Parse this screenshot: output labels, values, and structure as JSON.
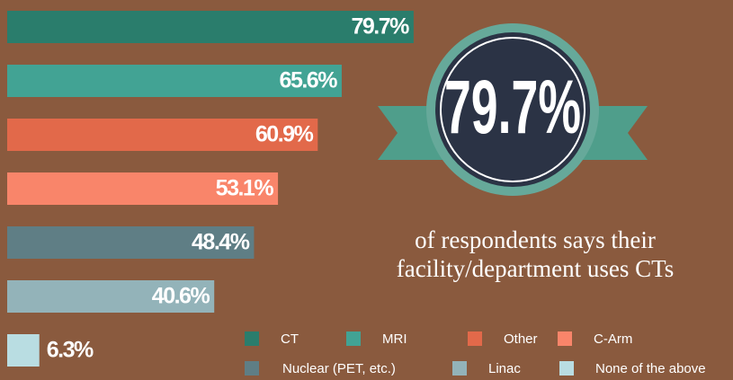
{
  "chart_data": {
    "type": "bar",
    "orientation": "horizontal",
    "categories": [
      "CT",
      "MRI",
      "Other",
      "C-Arm",
      "Nuclear (PET, etc.)",
      "Linac",
      "None of the above"
    ],
    "values": [
      79.7,
      65.6,
      60.9,
      53.1,
      48.4,
      40.6,
      6.3
    ],
    "value_labels": [
      "79.7%",
      "65.6%",
      "60.9%",
      "53.1%",
      "48.4%",
      "40.6%",
      "6.3%"
    ],
    "colors": [
      "#2a7d6c",
      "#42a394",
      "#e2694a",
      "#f9856a",
      "#5f7e85",
      "#93b3b9",
      "#b9dde2"
    ],
    "caption": [
      "of respondents says their",
      "facility/department uses CTs"
    ]
  }
}
